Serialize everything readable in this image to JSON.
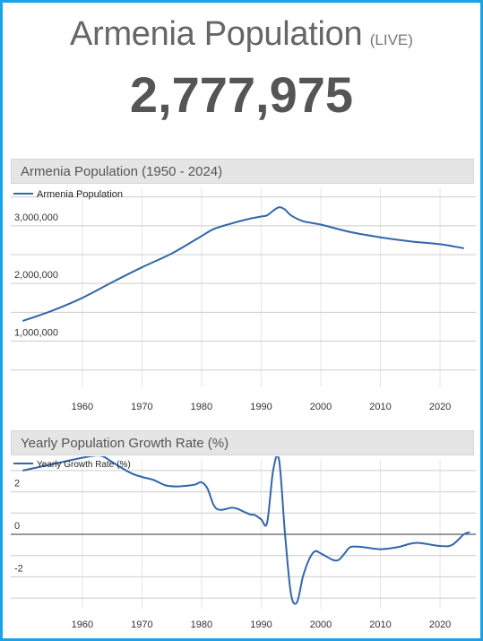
{
  "header": {
    "title": "Armenia Population",
    "live_label": "(LIVE)",
    "counter": "2,777,975"
  },
  "colors": {
    "frame": "#1aa3e8",
    "line": "#3366aa",
    "grid": "#cccccc"
  },
  "chart_data": [
    {
      "type": "line",
      "title": "Armenia Population (1950 - 2024)",
      "series": [
        {
          "name": "Armenia Population",
          "x": [
            1950,
            1955,
            1960,
            1965,
            1970,
            1975,
            1979,
            1980,
            1982,
            1985,
            1988,
            1990,
            1991,
            1992,
            1993,
            1994,
            1995,
            1997,
            2000,
            2005,
            2010,
            2015,
            2020,
            2024
          ],
          "values": [
            1350000,
            1530000,
            1750000,
            2020000,
            2280000,
            2520000,
            2760000,
            2820000,
            2940000,
            3040000,
            3120000,
            3160000,
            3180000,
            3260000,
            3320000,
            3280000,
            3180000,
            3080000,
            3020000,
            2890000,
            2800000,
            2730000,
            2680000,
            2610000
          ]
        }
      ],
      "xlim": [
        1948,
        2026
      ],
      "ylim": [
        200000,
        3650000
      ],
      "xticks": [
        1960,
        1970,
        1980,
        1990,
        2000,
        2010,
        2020
      ],
      "ytick_labels": [
        {
          "value": 1000000,
          "label": "1,000,000"
        },
        {
          "value": 2000000,
          "label": "2,000,000"
        },
        {
          "value": 3000000,
          "label": "3,000,000"
        }
      ],
      "grid": true,
      "legend": "top-left"
    },
    {
      "type": "line",
      "title": "Yearly Population Growth Rate (%)",
      "series": [
        {
          "name": "Yearly Growth Rate (%)",
          "x": [
            1950,
            1955,
            1960,
            1963,
            1965,
            1968,
            1970,
            1972,
            1974,
            1976,
            1978,
            1979,
            1980,
            1981,
            1982,
            1983,
            1985,
            1986,
            1988,
            1989,
            1990,
            1991,
            1992,
            1993,
            1994,
            1995,
            1996,
            1997,
            1998,
            1999,
            2000,
            2002,
            2003,
            2004,
            2005,
            2007,
            2010,
            2013,
            2016,
            2020,
            2022,
            2024,
            2025
          ],
          "values": [
            3.0,
            3.3,
            3.6,
            3.7,
            3.4,
            2.9,
            2.7,
            2.55,
            2.3,
            2.25,
            2.3,
            2.35,
            2.45,
            2.15,
            1.4,
            1.15,
            1.25,
            1.2,
            0.95,
            0.9,
            0.7,
            0.55,
            3.0,
            3.5,
            0.0,
            -2.8,
            -3.2,
            -2.0,
            -1.2,
            -0.8,
            -0.9,
            -1.2,
            -1.2,
            -0.9,
            -0.6,
            -0.6,
            -0.7,
            -0.6,
            -0.4,
            -0.55,
            -0.5,
            0.0,
            0.1
          ]
        }
      ],
      "xlim": [
        1948,
        2026
      ],
      "ylim": [
        -3.5,
        3.5
      ],
      "xticks": [
        1960,
        1970,
        1980,
        1990,
        2000,
        2010,
        2020
      ],
      "ytick_labels": [
        {
          "value": 2,
          "label": "2"
        },
        {
          "value": 0,
          "label": "0"
        },
        {
          "value": -2,
          "label": "-2"
        }
      ],
      "grid": true,
      "legend": "top-left"
    }
  ]
}
